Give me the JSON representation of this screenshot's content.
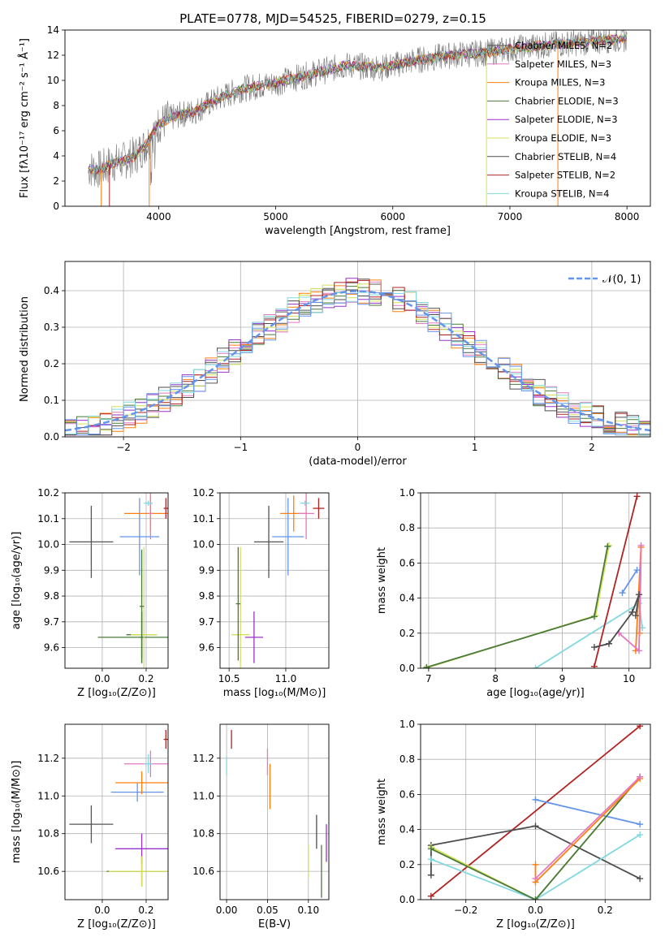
{
  "figure_title": "PLATE=0778, MJD=54525, FIBERID=0279, z=0.15",
  "colors": {
    "Chabrier MILES": "#555555",
    "Salpeter MILES": "#e377c2",
    "Kroupa MILES": "#ff7f0e",
    "Chabrier ELODIE": "#4a7a3a",
    "Salpeter ELODIE": "#9932cc",
    "Kroupa ELODIE": "#d4e157",
    "Chabrier STELIB": "#4d4d4d",
    "Salpeter STELIB": "#b22222",
    "Kroupa STELIB": "#80d8e0",
    "blue": "#6495ed",
    "data": "#777777"
  },
  "chart_data": [
    {
      "type": "line",
      "panel": "spectrum",
      "title": "PLATE=0778, MJD=54525, FIBERID=0279, z=0.15",
      "xlabel": "wavelength [Angstrom, rest frame]",
      "ylabel": "Flux [fλ10⁻¹⁷ erg cm⁻² s⁻¹ Å⁻¹]",
      "xlim": [
        3200,
        8200
      ],
      "ylim": [
        0,
        14
      ],
      "xticks": [
        "4000",
        "5000",
        "6000",
        "7000",
        "8000"
      ],
      "yticks": [
        "0",
        "2",
        "4",
        "6",
        "8",
        "10",
        "12",
        "14"
      ],
      "legend_position": "top-right",
      "legend": [
        "Chabrier MILES, N_SSP=2",
        "Salpeter MILES, N_SSP=3",
        "Kroupa MILES, N_SSP=3",
        "Chabrier ELODIE, N_SSP=3",
        "Salpeter ELODIE, N_SSP=3",
        "Kroupa ELODIE, N_SSP=3",
        "Chabrier STELIB, N_SSP=4",
        "Salpeter STELIB, N_SSP=2",
        "Kroupa STELIB, N_SSP=4"
      ],
      "continuum": {
        "x": [
          3400,
          3500,
          3600,
          3700,
          3800,
          3900,
          4000,
          4100,
          4200,
          4300,
          4500,
          4700,
          5000,
          5300,
          5600,
          5900,
          6200,
          6500,
          6800,
          7000,
          7300,
          7600,
          7800,
          8000
        ],
        "y": [
          3.0,
          2.9,
          3.4,
          3.6,
          4.0,
          5.0,
          6.5,
          7.0,
          7.3,
          7.5,
          8.5,
          9.3,
          9.8,
          10.5,
          11.2,
          11.0,
          11.6,
          12.0,
          12.2,
          12.5,
          12.8,
          13.0,
          13.2,
          13.3
        ]
      }
    },
    {
      "type": "histogram",
      "panel": "residuals",
      "xlabel": "(data-model)/error",
      "ylabel": "Normed distribution",
      "xlim": [
        -2.5,
        2.5
      ],
      "ylim": [
        0,
        0.48
      ],
      "xticks": [
        "−2",
        "−1",
        "0",
        "1",
        "2"
      ],
      "yticks": [
        "0.0",
        "0.1",
        "0.2",
        "0.3",
        "0.4"
      ],
      "reference_legend": "𝒩(0, 1)",
      "legend_position": "top-right",
      "bin_width": 0.1
    },
    {
      "type": "errorbar",
      "panel": "age_vs_Z",
      "xlabel": "Z [log₁₀(Z/Z⊙)]",
      "ylabel": "age  [log₁₀(age/yr)]",
      "xlim": [
        -0.17,
        0.3
      ],
      "ylim": [
        9.52,
        10.2
      ],
      "xticks": [
        "0.0",
        "0.2"
      ],
      "yticks": [
        "9.6",
        "9.7",
        "9.8",
        "9.9",
        "10.0",
        "10.1",
        "10.2"
      ],
      "points": [
        {
          "x": -0.05,
          "y": 10.01,
          "xerr": 0.1,
          "yerr": 0.14,
          "c": "Chabrier MILES"
        },
        {
          "x": 0.17,
          "y": 10.03,
          "xerr": 0.09,
          "yerr": 0.15,
          "c": "blue"
        },
        {
          "x": 0.22,
          "y": 10.12,
          "xerr": 0.12,
          "yerr": 0.07,
          "c": "Kroupa MILES"
        },
        {
          "x": 0.22,
          "y": 10.12,
          "xerr": 0.01,
          "yerr": 0.1,
          "c": "Salpeter MILES"
        },
        {
          "x": 0.21,
          "y": 10.16,
          "xerr": 0.02,
          "yerr": 0.01,
          "c": "Kroupa STELIB"
        },
        {
          "x": 0.29,
          "y": 10.14,
          "xerr": 0.01,
          "yerr": 0.04,
          "c": "Salpeter STELIB"
        },
        {
          "x": 0.18,
          "y": 9.64,
          "xerr": 0.01,
          "yerr": 0.1,
          "c": "Salpeter ELODIE"
        },
        {
          "x": 0.18,
          "y": 9.65,
          "xerr": 0.07,
          "yerr": 0.09,
          "c": "Chabrier ELODIE"
        },
        {
          "x": 0.18,
          "y": 9.64,
          "xerr": 0.2,
          "yerr": 0.01,
          "c": "Chabrier ELODIE"
        },
        {
          "x": 0.19,
          "y": 9.65,
          "xerr": 0.06,
          "yerr": 0.34,
          "c": "Kroupa ELODIE"
        },
        {
          "x": 0.18,
          "y": 9.76,
          "xerr": 0.01,
          "yerr": 0.22,
          "c": "Chabrier ELODIE"
        }
      ]
    },
    {
      "type": "errorbar",
      "panel": "age_vs_mass",
      "xlabel": "mass [log₁₀(M/M⊙)]",
      "ylabel": "",
      "xlim": [
        10.42,
        11.38
      ],
      "ylim": [
        9.52,
        10.2
      ],
      "xticks": [
        "10.5",
        "11.0"
      ],
      "yticks": [
        "9.6",
        "9.7",
        "9.8",
        "9.9",
        "10.0",
        "10.1",
        "10.2"
      ],
      "points": [
        {
          "x": 10.85,
          "y": 10.01,
          "xerr": 0.13,
          "yerr": 0.14,
          "c": "Chabrier MILES"
        },
        {
          "x": 11.02,
          "y": 10.03,
          "xerr": 0.14,
          "yerr": 0.15,
          "c": "blue"
        },
        {
          "x": 11.07,
          "y": 10.12,
          "xerr": 0.12,
          "yerr": 0.07,
          "c": "Kroupa MILES"
        },
        {
          "x": 11.18,
          "y": 10.12,
          "xerr": 0.07,
          "yerr": 0.1,
          "c": "Salpeter MILES"
        },
        {
          "x": 11.17,
          "y": 10.16,
          "xerr": 0.04,
          "yerr": 0.01,
          "c": "Kroupa STELIB"
        },
        {
          "x": 11.29,
          "y": 10.14,
          "xerr": 0.05,
          "yerr": 0.04,
          "c": "Salpeter STELIB"
        },
        {
          "x": 10.72,
          "y": 9.64,
          "xerr": 0.08,
          "yerr": 0.1,
          "c": "Salpeter ELODIE"
        },
        {
          "x": 10.6,
          "y": 9.65,
          "xerr": 0.08,
          "yerr": 0.34,
          "c": "Kroupa ELODIE"
        },
        {
          "x": 10.58,
          "y": 9.77,
          "xerr": 0.02,
          "yerr": 0.22,
          "c": "Chabrier ELODIE"
        }
      ]
    },
    {
      "type": "line",
      "panel": "weight_vs_age",
      "xlabel": "age  [log₁₀(age/yr)]",
      "ylabel": "mass weight",
      "xlim": [
        6.88,
        10.32
      ],
      "ylim": [
        0,
        1
      ],
      "xticks": [
        "7",
        "8",
        "9",
        "10"
      ],
      "yticks": [
        "0.0",
        "0.2",
        "0.4",
        "0.6",
        "0.8",
        "1.0"
      ],
      "series": [
        {
          "c": "Kroupa ELODIE",
          "x": [
            6.95,
            9.5,
            9.7
          ],
          "y": [
            0.0,
            0.3,
            0.7
          ]
        },
        {
          "c": "Chabrier ELODIE",
          "x": [
            6.97,
            9.48,
            9.68
          ],
          "y": [
            0.005,
            0.295,
            0.695
          ]
        },
        {
          "c": "Kroupa STELIB",
          "x": [
            8.6,
            10.15,
            10.2
          ],
          "y": [
            0.0,
            0.37,
            0.23
          ]
        },
        {
          "c": "Salpeter STELIB",
          "x": [
            9.48,
            10.12
          ],
          "y": [
            0.01,
            0.98
          ]
        },
        {
          "c": "Kroupa MILES",
          "x": [
            10.1,
            10.18,
            10.16
          ],
          "y": [
            0.1,
            0.69,
            0.2
          ]
        },
        {
          "c": "Salpeter MILES",
          "x": [
            9.85,
            10.15,
            10.18
          ],
          "y": [
            0.2,
            0.1,
            0.7
          ]
        },
        {
          "c": "Chabrier STELIB",
          "x": [
            9.48,
            9.7,
            10.05,
            10.15
          ],
          "y": [
            0.12,
            0.14,
            0.32,
            0.42
          ]
        },
        {
          "c": "blue",
          "x": [
            9.9,
            10.12
          ],
          "y": [
            0.43,
            0.56
          ]
        },
        {
          "c": "Chabrier MILES",
          "x": [
            10.1,
            10.15
          ],
          "y": [
            0.3,
            0.42
          ]
        }
      ]
    },
    {
      "type": "errorbar",
      "panel": "mass_vs_Z",
      "xlabel": "Z [log₁₀(Z/Z⊙)]",
      "ylabel": "mass [log₁₀(M/M⊙)]",
      "xlim": [
        -0.17,
        0.3
      ],
      "ylim": [
        10.45,
        11.38
      ],
      "xticks": [
        "0.0",
        "0.2"
      ],
      "yticks": [
        "10.6",
        "10.8",
        "11.0",
        "11.2"
      ],
      "points": [
        {
          "x": -0.05,
          "y": 10.85,
          "xerr": 0.1,
          "yerr": 0.1,
          "c": "Chabrier MILES"
        },
        {
          "x": 0.16,
          "y": 11.02,
          "xerr": 0.12,
          "yerr": 0.05,
          "c": "blue"
        },
        {
          "x": 0.18,
          "y": 11.07,
          "xerr": 0.12,
          "yerr": 0.06,
          "c": "Kroupa MILES"
        },
        {
          "x": 0.22,
          "y": 11.17,
          "xerr": 0.12,
          "yerr": 0.07,
          "c": "Salpeter MILES"
        },
        {
          "x": 0.21,
          "y": 11.17,
          "xerr": 0.02,
          "yerr": 0.05,
          "c": "Kroupa STELIB"
        },
        {
          "x": 0.29,
          "y": 11.3,
          "xerr": 0.01,
          "yerr": 0.05,
          "c": "Salpeter STELIB"
        },
        {
          "x": 0.18,
          "y": 10.72,
          "xerr": 0.12,
          "yerr": 0.08,
          "c": "Salpeter ELODIE"
        },
        {
          "x": 0.18,
          "y": 10.6,
          "xerr": 0.16,
          "yerr": 0.08,
          "c": "Chabrier ELODIE"
        },
        {
          "x": 0.18,
          "y": 10.6,
          "xerr": 0.15,
          "yerr": 0.08,
          "c": "Kroupa ELODIE"
        }
      ]
    },
    {
      "type": "errorbar",
      "panel": "mass_vs_ebv",
      "xlabel": "E(B-V)",
      "ylabel": "",
      "xlim": [
        -0.008,
        0.125
      ],
      "ylim": [
        10.45,
        11.38
      ],
      "xticks": [
        "0.00",
        "0.05",
        "0.10"
      ],
      "yticks": [
        "10.6",
        "10.8",
        "11.0",
        "11.2"
      ],
      "points": [
        {
          "x": 0.0,
          "y": 11.16,
          "xerr": 0.0,
          "yerr": 0.05,
          "c": "Kroupa STELIB"
        },
        {
          "x": 0.006,
          "y": 11.3,
          "xerr": 0.0,
          "yerr": 0.05,
          "c": "Salpeter STELIB"
        },
        {
          "x": 0.05,
          "y": 11.18,
          "xerr": 0.0,
          "yerr": 0.07,
          "c": "Salpeter MILES"
        },
        {
          "x": 0.053,
          "y": 11.05,
          "xerr": 0.0,
          "yerr": 0.12,
          "c": "Kroupa MILES"
        },
        {
          "x": 0.1,
          "y": 10.65,
          "xerr": 0.0,
          "yerr": 0.09,
          "c": "Kroupa ELODIE"
        },
        {
          "x": 0.11,
          "y": 10.81,
          "xerr": 0.0,
          "yerr": 0.09,
          "c": "Chabrier STELIB"
        },
        {
          "x": 0.116,
          "y": 10.6,
          "xerr": 0.0,
          "yerr": 0.14,
          "c": "Chabrier ELODIE"
        },
        {
          "x": 0.122,
          "y": 10.75,
          "xerr": 0.0,
          "yerr": 0.1,
          "c": "Salpeter ELODIE"
        }
      ]
    },
    {
      "type": "line",
      "panel": "weight_vs_Z",
      "xlabel": "Z [log₁₀(Z/Z⊙)]",
      "ylabel": "mass weight",
      "xlim": [
        -0.33,
        0.33
      ],
      "ylim": [
        0,
        1
      ],
      "xticks": [
        "−0.2",
        "0.0",
        "0.2"
      ],
      "yticks": [
        "0.0",
        "0.2",
        "0.4",
        "0.6",
        "0.8",
        "1.0"
      ],
      "series": [
        {
          "c": "Salpeter STELIB",
          "x": [
            -0.3,
            0.3
          ],
          "y": [
            0.02,
            0.99
          ]
        },
        {
          "c": "blue",
          "x": [
            0.0,
            0.3
          ],
          "y": [
            0.57,
            0.43
          ]
        },
        {
          "c": "Chabrier STELIB",
          "x": [
            -0.3,
            -0.3,
            0.0,
            0.3
          ],
          "y": [
            0.14,
            0.31,
            0.42,
            0.12
          ]
        },
        {
          "c": "Kroupa STELIB",
          "x": [
            -0.3,
            0.0,
            0.3
          ],
          "y": [
            0.23,
            0.0,
            0.37
          ]
        },
        {
          "c": "Kroupa ELODIE",
          "x": [
            -0.3,
            0.0,
            0.3
          ],
          "y": [
            0.3,
            0.0,
            0.7
          ]
        },
        {
          "c": "Chabrier ELODIE",
          "x": [
            -0.3,
            0.0,
            0.3
          ],
          "y": [
            0.29,
            0.0,
            0.7
          ]
        },
        {
          "c": "Kroupa MILES",
          "x": [
            0.0,
            0.0,
            0.3
          ],
          "y": [
            0.2,
            0.1,
            0.69
          ]
        },
        {
          "c": "Salpeter MILES",
          "x": [
            0.0,
            0.3
          ],
          "y": [
            0.12,
            0.7
          ]
        }
      ]
    }
  ]
}
